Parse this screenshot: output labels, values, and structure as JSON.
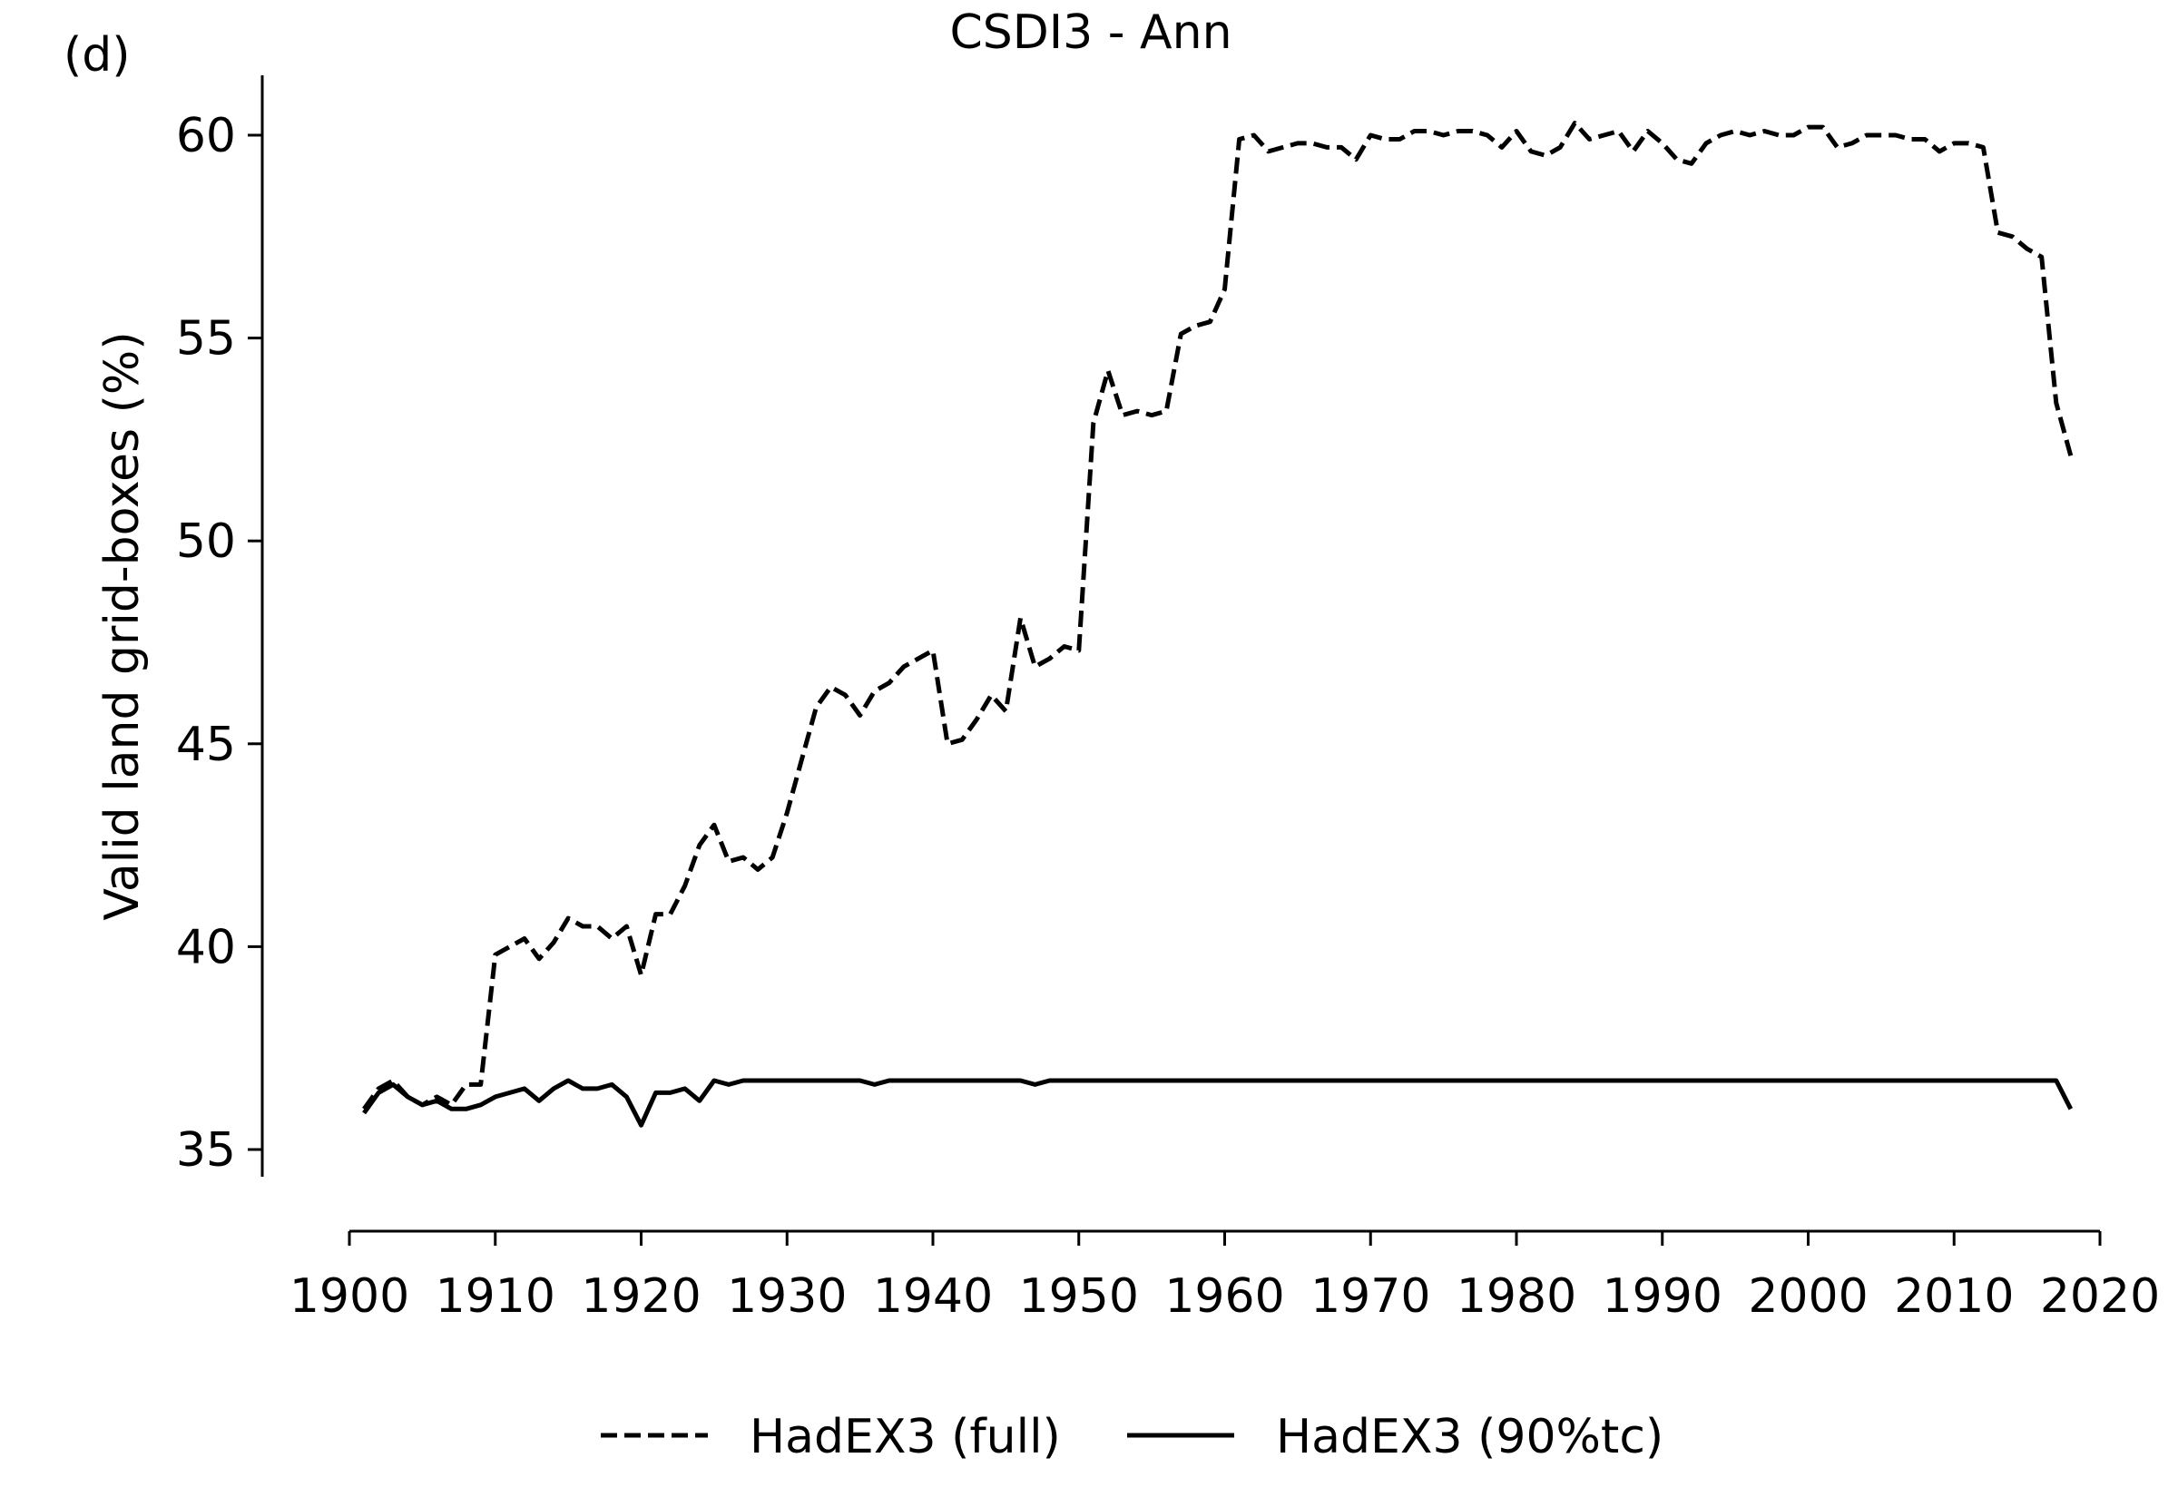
{
  "panel_label": "(d)",
  "chart_data": {
    "type": "line",
    "title": "CSDI3 - Ann",
    "xlabel": "",
    "ylabel": "Valid land grid-boxes (%)",
    "xlim": [
      1900,
      2020
    ],
    "ylim": [
      35,
      61
    ],
    "xticks": [
      1900,
      1910,
      1920,
      1930,
      1940,
      1950,
      1960,
      1970,
      1980,
      1990,
      2000,
      2010,
      2020
    ],
    "yticks": [
      35,
      40,
      45,
      50,
      55,
      60
    ],
    "grid": false,
    "legend_position": "bottom-center",
    "series": [
      {
        "name": "HadEX3 (full)",
        "style": "dashed",
        "color": "#000000",
        "x": [
          1901,
          1902,
          1903,
          1904,
          1905,
          1906,
          1907,
          1908,
          1909,
          1910,
          1911,
          1912,
          1913,
          1914,
          1915,
          1916,
          1917,
          1918,
          1919,
          1920,
          1921,
          1922,
          1923,
          1924,
          1925,
          1926,
          1927,
          1928,
          1929,
          1930,
          1931,
          1932,
          1933,
          1934,
          1935,
          1936,
          1937,
          1938,
          1939,
          1940,
          1941,
          1942,
          1943,
          1944,
          1945,
          1946,
          1947,
          1948,
          1949,
          1950,
          1951,
          1952,
          1953,
          1954,
          1955,
          1956,
          1957,
          1958,
          1959,
          1960,
          1961,
          1962,
          1963,
          1964,
          1965,
          1966,
          1967,
          1968,
          1969,
          1970,
          1971,
          1972,
          1973,
          1974,
          1975,
          1976,
          1977,
          1978,
          1979,
          1980,
          1981,
          1982,
          1983,
          1984,
          1985,
          1986,
          1987,
          1988,
          1989,
          1990,
          1991,
          1992,
          1993,
          1994,
          1995,
          1996,
          1997,
          1998,
          1999,
          2000,
          2001,
          2002,
          2003,
          2004,
          2005,
          2006,
          2007,
          2008,
          2009,
          2010,
          2011,
          2012,
          2013,
          2014,
          2015,
          2016,
          2017,
          2018
        ],
        "values": [
          36.0,
          36.5,
          36.7,
          36.3,
          36.1,
          36.3,
          36.1,
          36.6,
          36.6,
          39.8,
          40.0,
          40.2,
          39.7,
          40.1,
          40.7,
          40.5,
          40.5,
          40.2,
          40.5,
          39.3,
          40.8,
          40.8,
          41.5,
          42.5,
          43.0,
          42.1,
          42.2,
          41.9,
          42.2,
          43.3,
          44.6,
          45.9,
          46.4,
          46.2,
          45.7,
          46.3,
          46.5,
          46.9,
          47.1,
          47.3,
          45.0,
          45.1,
          45.6,
          46.2,
          45.8,
          48.1,
          46.9,
          47.1,
          47.4,
          47.3,
          52.9,
          54.2,
          53.1,
          53.2,
          53.1,
          53.2,
          55.1,
          55.3,
          55.4,
          56.2,
          59.9,
          60.0,
          59.6,
          59.7,
          59.8,
          59.8,
          59.7,
          59.7,
          59.4,
          60.0,
          59.9,
          59.9,
          60.1,
          60.1,
          60.0,
          60.1,
          60.1,
          60.0,
          59.7,
          60.1,
          59.6,
          59.5,
          59.7,
          60.3,
          59.9,
          60.0,
          60.1,
          59.6,
          60.1,
          59.8,
          59.4,
          59.3,
          59.8,
          60.0,
          60.1,
          60.0,
          60.1,
          60.0,
          60.0,
          60.2,
          60.2,
          59.7,
          59.8,
          60.0,
          60.0,
          60.0,
          59.9,
          59.9,
          59.6,
          59.8,
          59.8,
          59.7,
          57.6,
          57.5,
          57.2,
          57.0,
          53.4,
          52.1
        ]
      },
      {
        "name": "HadEX3 (90%tc)",
        "style": "solid",
        "color": "#000000",
        "x": [
          1901,
          1902,
          1903,
          1904,
          1905,
          1906,
          1907,
          1908,
          1909,
          1910,
          1911,
          1912,
          1913,
          1914,
          1915,
          1916,
          1917,
          1918,
          1919,
          1920,
          1921,
          1922,
          1923,
          1924,
          1925,
          1926,
          1927,
          1928,
          1929,
          1930,
          1931,
          1932,
          1933,
          1934,
          1935,
          1936,
          1937,
          1938,
          1939,
          1940,
          1941,
          1942,
          1943,
          1944,
          1945,
          1946,
          1947,
          1948,
          1949,
          1950,
          1951,
          1952,
          1953,
          1954,
          1955,
          1956,
          1957,
          1958,
          1959,
          1960,
          1961,
          1962,
          1963,
          1964,
          1965,
          1966,
          1967,
          1968,
          1969,
          1970,
          1971,
          1972,
          1973,
          1974,
          1975,
          1976,
          1977,
          1978,
          1979,
          1980,
          1981,
          1982,
          1983,
          1984,
          1985,
          1986,
          1987,
          1988,
          1989,
          1990,
          1991,
          1992,
          1993,
          1994,
          1995,
          1996,
          1997,
          1998,
          1999,
          2000,
          2001,
          2002,
          2003,
          2004,
          2005,
          2006,
          2007,
          2008,
          2009,
          2010,
          2011,
          2012,
          2013,
          2014,
          2015,
          2016,
          2017,
          2018
        ],
        "values": [
          35.9,
          36.4,
          36.6,
          36.3,
          36.1,
          36.2,
          36.0,
          36.0,
          36.1,
          36.3,
          36.4,
          36.5,
          36.2,
          36.5,
          36.7,
          36.5,
          36.5,
          36.6,
          36.3,
          35.6,
          36.4,
          36.4,
          36.5,
          36.2,
          36.7,
          36.6,
          36.7,
          36.7,
          36.7,
          36.7,
          36.7,
          36.7,
          36.7,
          36.7,
          36.7,
          36.6,
          36.7,
          36.7,
          36.7,
          36.7,
          36.7,
          36.7,
          36.7,
          36.7,
          36.7,
          36.7,
          36.6,
          36.7,
          36.7,
          36.7,
          36.7,
          36.7,
          36.7,
          36.7,
          36.7,
          36.7,
          36.7,
          36.7,
          36.7,
          36.7,
          36.7,
          36.7,
          36.7,
          36.7,
          36.7,
          36.7,
          36.7,
          36.7,
          36.7,
          36.7,
          36.7,
          36.7,
          36.7,
          36.7,
          36.7,
          36.7,
          36.7,
          36.7,
          36.7,
          36.7,
          36.7,
          36.7,
          36.7,
          36.7,
          36.7,
          36.7,
          36.7,
          36.7,
          36.7,
          36.7,
          36.7,
          36.7,
          36.7,
          36.7,
          36.7,
          36.7,
          36.7,
          36.7,
          36.7,
          36.7,
          36.7,
          36.7,
          36.7,
          36.7,
          36.7,
          36.7,
          36.7,
          36.7,
          36.7,
          36.7,
          36.7,
          36.7,
          36.7,
          36.7,
          36.7,
          36.7,
          36.7,
          36.0
        ]
      }
    ]
  }
}
